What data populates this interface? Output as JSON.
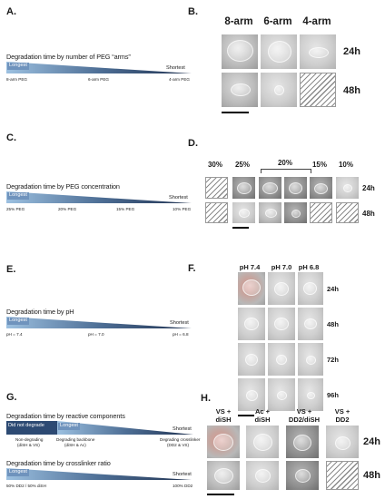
{
  "panel_a": {
    "label": "A.",
    "title": "Degradation time by number of PEG “arms”",
    "longest": "Longest",
    "shortest": "Shortest",
    "ticks": [
      "8-arm PEG",
      "6-arm PEG",
      "4-arm PEG"
    ]
  },
  "panel_b": {
    "label": "B.",
    "columns": [
      "8-arm",
      "6-arm",
      "4-arm"
    ],
    "rows": [
      "24h",
      "48h"
    ]
  },
  "panel_c": {
    "label": "C.",
    "title": "Degradation time by PEG concentration",
    "longest": "Longest",
    "shortest": "Shortest",
    "ticks": [
      "25% PEG",
      "20% PEG",
      "15% PEG",
      "10% PEG"
    ]
  },
  "panel_d": {
    "label": "D.",
    "columns": [
      "30%",
      "25%",
      "20%",
      "15%",
      "10%"
    ],
    "rows": [
      "24h",
      "48h"
    ]
  },
  "panel_e": {
    "label": "E.",
    "title": "Degradation time by pH",
    "longest": "Longest",
    "shortest": "Shortest",
    "ticks": [
      "pH = 7.4",
      "pH = 7.0",
      "pH = 6.8"
    ]
  },
  "panel_f": {
    "label": "F.",
    "columns": [
      "pH 7.4",
      "pH 7.0",
      "pH 6.8"
    ],
    "rows": [
      "24h",
      "48h",
      "72h",
      "96h"
    ]
  },
  "panel_g": {
    "label": "G.",
    "title1": "Degradation time by reactive components",
    "did_not_degrade": "Did not degrade",
    "longest": "Longest",
    "shortest": "Shortest",
    "ticks1": [
      {
        "line1": "Non-degrading",
        "line2": "(diSH & VS)"
      },
      {
        "line1": "Degrading backbone",
        "line2": "(diSH & Ac)"
      },
      {
        "line1": "Degrading crosslinker",
        "line2": "(DD2 & VS)"
      }
    ],
    "title2": "Degradation time by crosslinker ratio",
    "ticks2": [
      "50% DD2 / 50% diSH",
      "100% DD2"
    ]
  },
  "panel_h": {
    "label": "H.",
    "columns": [
      {
        "line1": "VS +",
        "line2": "diSH"
      },
      {
        "line1": "Ac +",
        "line2": "diSH"
      },
      {
        "line1": "VS +",
        "line2": "DD2/diSH"
      },
      {
        "line1": "VS +",
        "line2": "DD2"
      }
    ],
    "rows": [
      "24h",
      "48h"
    ]
  }
}
